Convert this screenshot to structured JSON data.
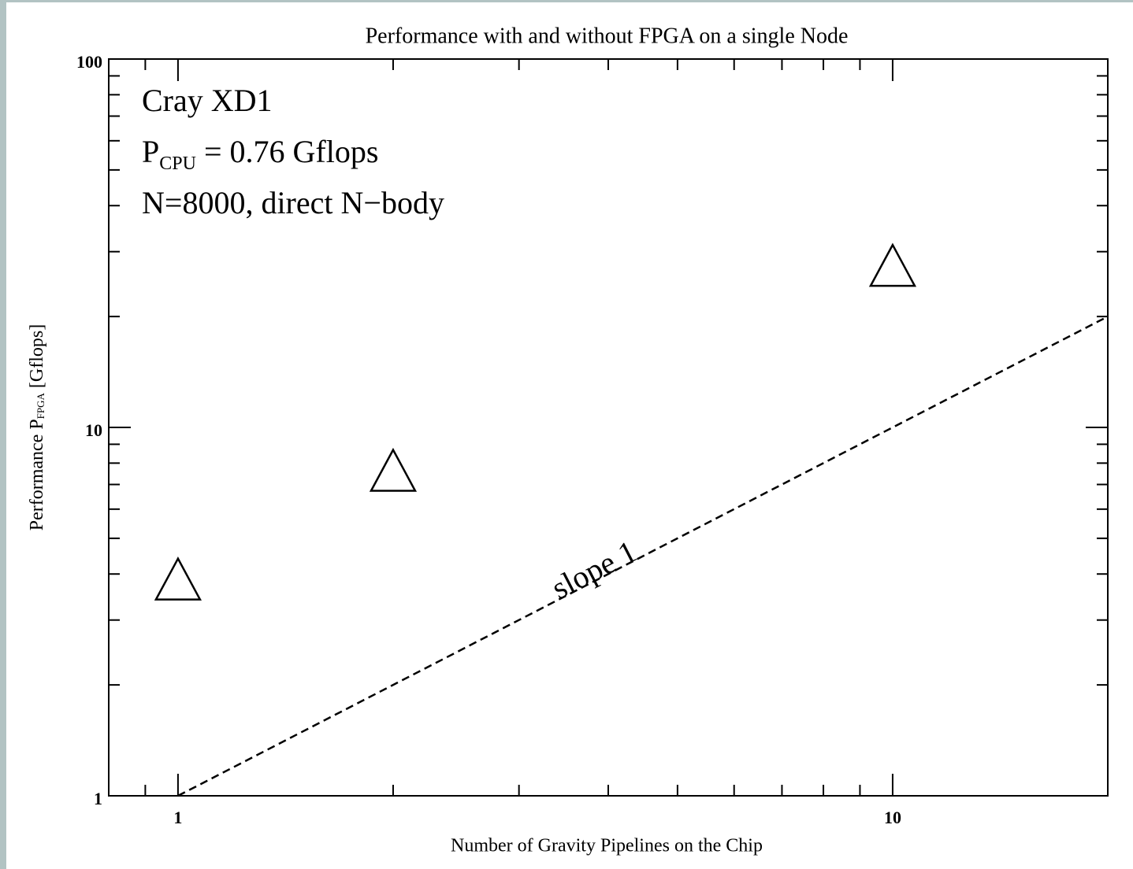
{
  "chart_data": {
    "type": "scatter",
    "title": "Performance with and without FPGA on a single Node",
    "xlabel": "Number of Gravity Pipelines on the Chip",
    "ylabel": {
      "text": "Performance P",
      "sub": "FPGA",
      "rest": " [Gflops]"
    },
    "annotations": [
      {
        "text": "Cray XD1"
      },
      {
        "text": "P",
        "sub": "CPU",
        "rest": " = 0.76 Gflops"
      },
      {
        "text": "N=8000, direct N−body"
      }
    ],
    "series": [
      {
        "marker": "triangle",
        "color": "#000000",
        "x": [
          1,
          2,
          10
        ],
        "values": [
          3.8,
          7.5,
          27
        ]
      }
    ],
    "reference_line": {
      "x": [
        1,
        20
      ],
      "y": [
        1,
        20
      ],
      "label": "slope 1",
      "dashed": true
    },
    "xscale": "log",
    "yscale": "log",
    "xlim": [
      0.8,
      20
    ],
    "ylim": [
      1,
      100
    ],
    "xticks": [
      1,
      10
    ],
    "yticks": [
      1,
      10,
      100
    ],
    "xminor": [
      0.8,
      0.9,
      2,
      3,
      4,
      5,
      6,
      7,
      8,
      9,
      20
    ],
    "yminor": [
      2,
      3,
      4,
      5,
      6,
      7,
      8,
      9,
      20,
      30,
      40,
      50,
      60,
      70,
      80,
      90
    ]
  }
}
